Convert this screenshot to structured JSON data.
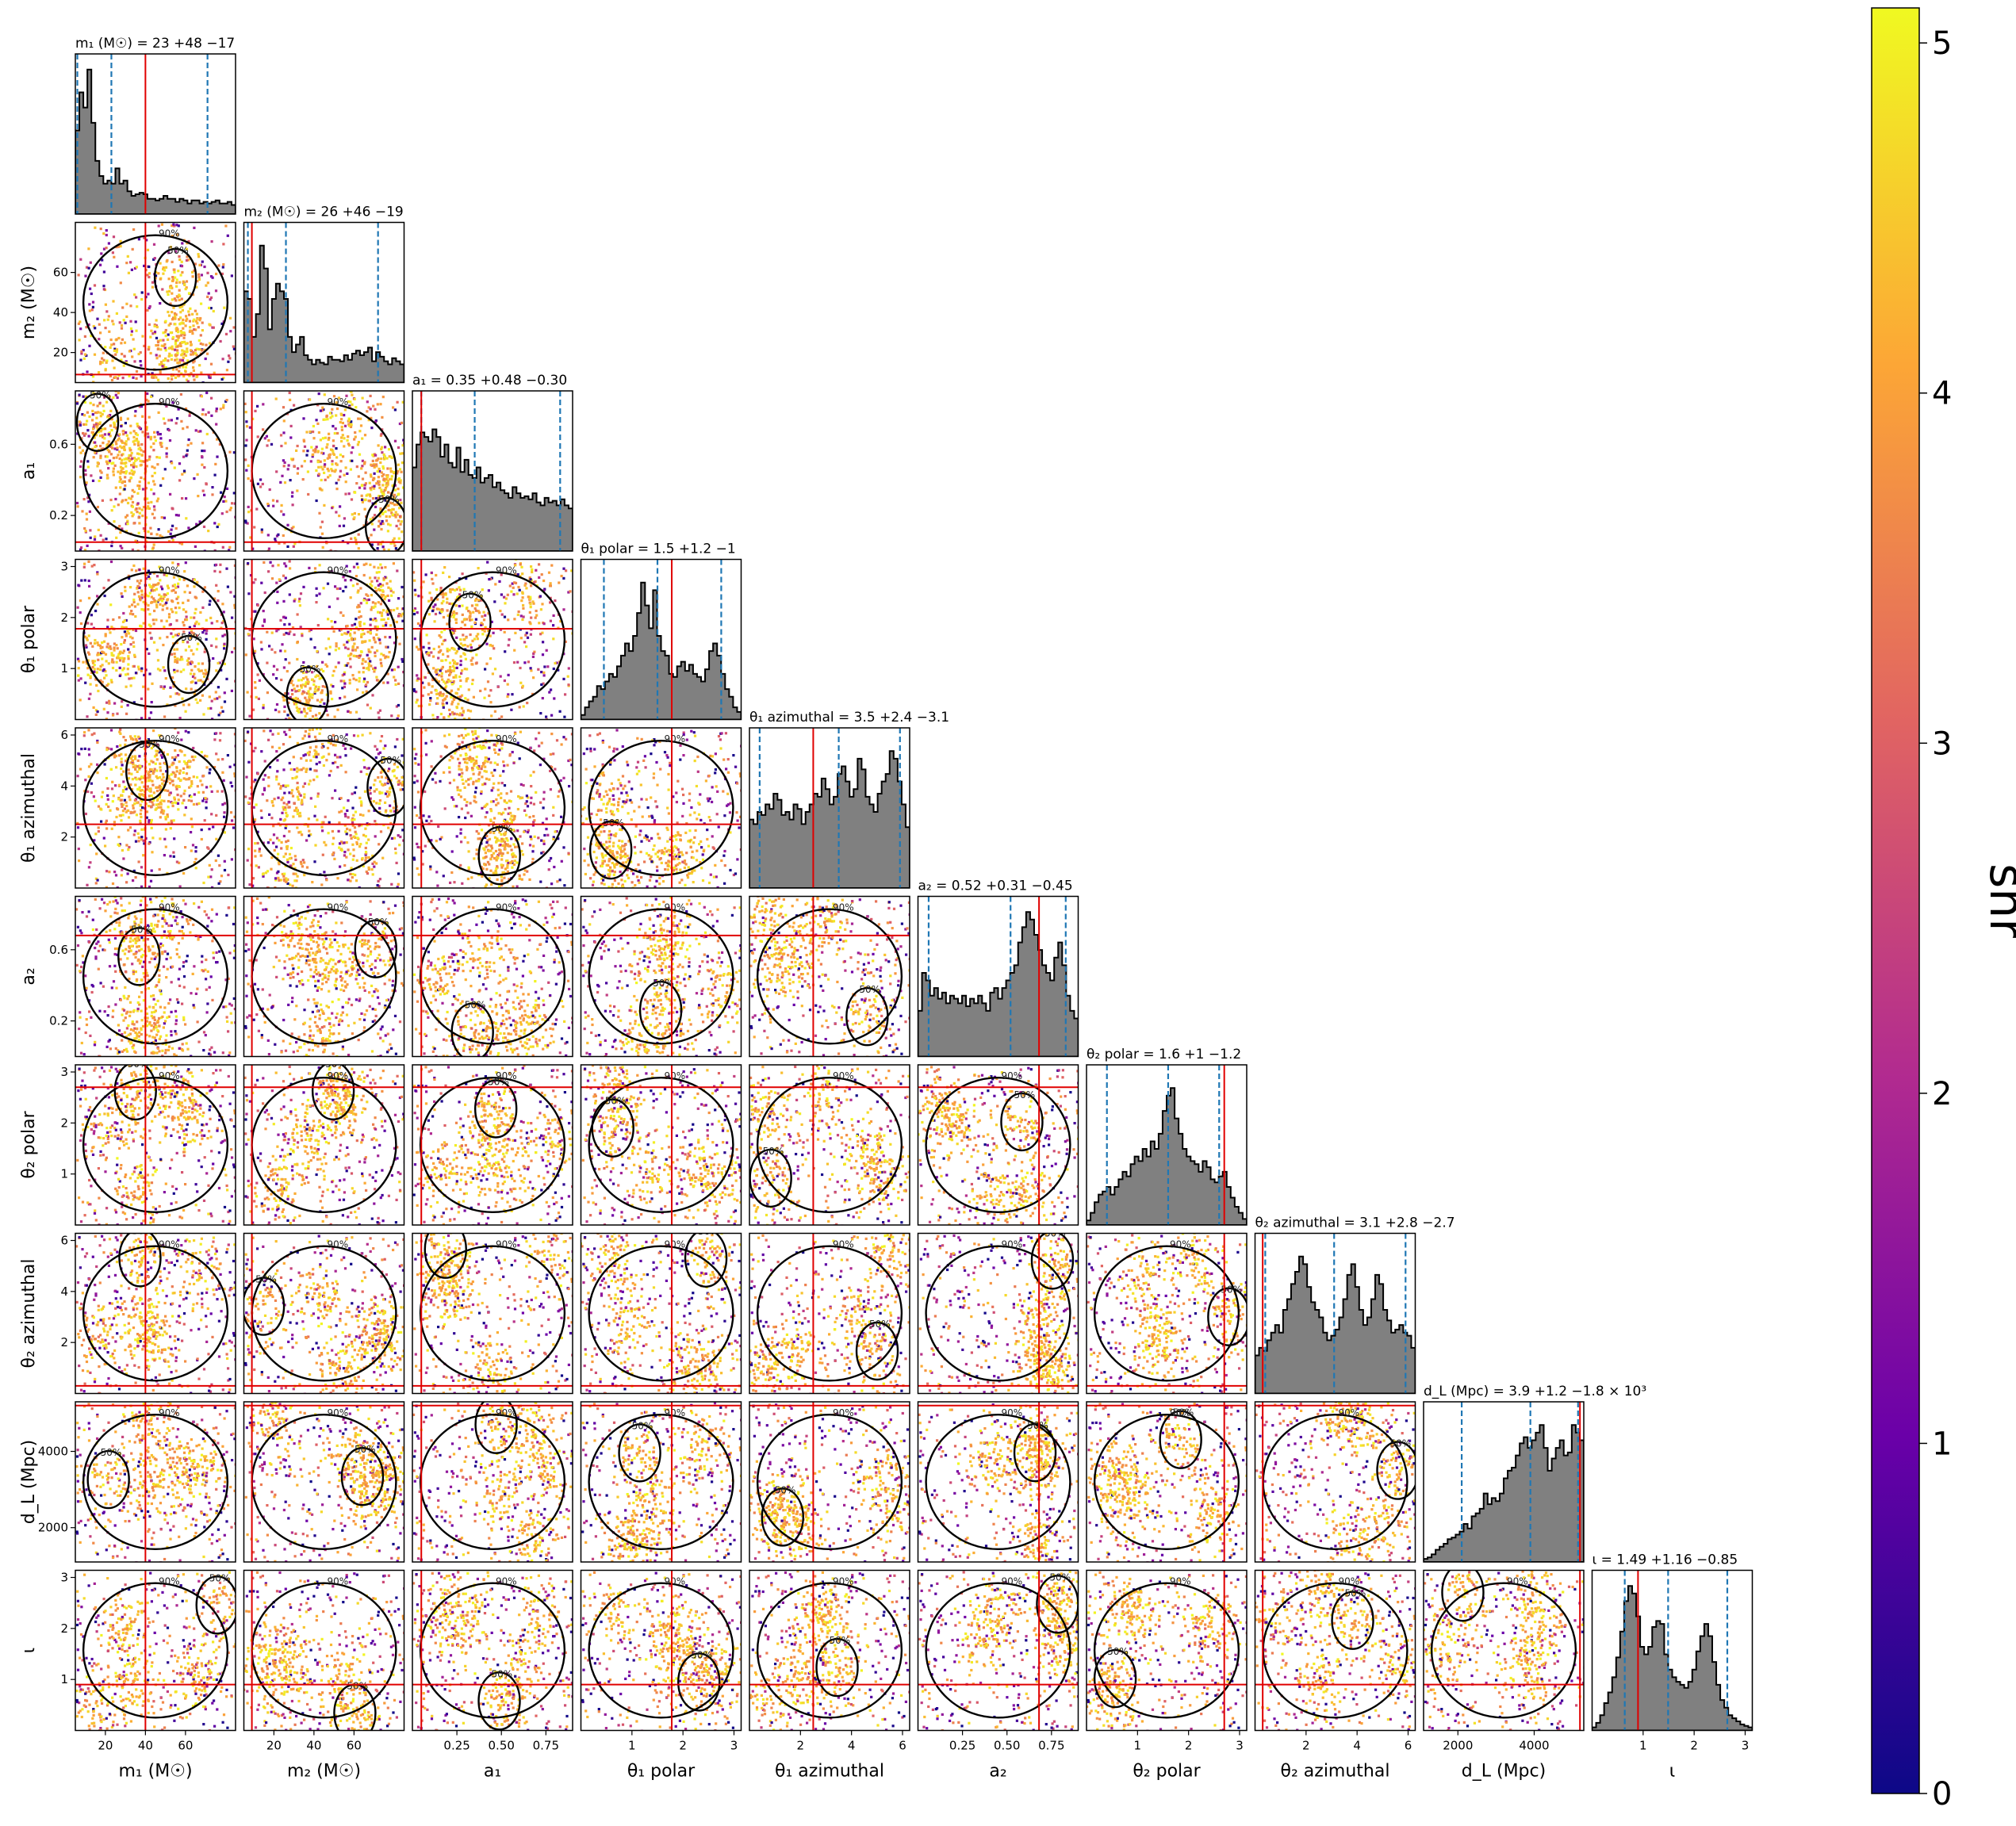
{
  "chart_data": {
    "type": "corner",
    "colors": {
      "hist_fill": "#808080",
      "quantile_line": "#1f77b4",
      "truth_line": "#e00000",
      "contour": "#000000"
    },
    "colormap": {
      "name": "plasma",
      "stops": [
        "#0d0887",
        "#6a00a8",
        "#b12a90",
        "#e16462",
        "#fca636",
        "#f0f921"
      ]
    },
    "colorbar": {
      "label": "snr",
      "range": [
        0,
        5.1
      ],
      "ticks": [
        "0",
        "1",
        "2",
        "3",
        "4",
        "5"
      ]
    },
    "contour_levels": [
      "50%",
      "90%"
    ],
    "parameters": [
      {
        "key": "m1",
        "label": "m₁ (M☉)",
        "title": "m₁ (M☉) = 23 +48 −17",
        "range": [
          5,
          85
        ],
        "ticks": [
          {
            "v": 20,
            "l": "20"
          },
          {
            "v": 40,
            "l": "40"
          },
          {
            "v": 60,
            "l": "60"
          }
        ],
        "quantiles": [
          6,
          23,
          71
        ],
        "truth": 40,
        "hist": [
          0.55,
          0.8,
          0.7,
          0.95,
          0.6,
          0.35,
          0.25,
          0.2,
          0.22,
          0.2,
          0.3,
          0.2,
          0.22,
          0.15,
          0.12,
          0.13,
          0.14,
          0.13,
          0.1,
          0.1,
          0.09,
          0.1,
          0.12,
          0.1,
          0.1,
          0.08,
          0.1,
          0.09,
          0.07,
          0.09,
          0.09,
          0.07,
          0.08,
          0.07,
          0.08,
          0.09,
          0.07,
          0.07,
          0.08,
          0.06
        ]
      },
      {
        "key": "m2",
        "label": "m₂ (M☉)",
        "title": "m₂ (M☉) = 26 +46 −19",
        "range": [
          5,
          85
        ],
        "ticks": [
          {
            "v": 20,
            "l": "20"
          },
          {
            "v": 40,
            "l": "40"
          },
          {
            "v": 60,
            "l": "60"
          }
        ],
        "quantiles": [
          7,
          26,
          72
        ],
        "truth": 9,
        "hist": [
          0.6,
          0.55,
          0.3,
          0.45,
          0.9,
          0.75,
          0.35,
          0.55,
          0.65,
          0.6,
          0.55,
          0.3,
          0.2,
          0.25,
          0.3,
          0.18,
          0.15,
          0.12,
          0.15,
          0.13,
          0.12,
          0.17,
          0.15,
          0.15,
          0.14,
          0.18,
          0.15,
          0.19,
          0.21,
          0.18,
          0.2,
          0.23,
          0.14,
          0.2,
          0.17,
          0.14,
          0.12,
          0.16,
          0.14,
          0.12
        ]
      },
      {
        "key": "a1",
        "label": "a₁",
        "title": "a₁ = 0.35 +0.48 −0.30",
        "range": [
          0,
          0.9
        ],
        "ticks": [
          {
            "v": 0.2,
            "l": "0.2"
          },
          {
            "v": 0.6,
            "l": "0.6"
          }
        ],
        "xticks": [
          {
            "v": 0.25,
            "l": "0.25"
          },
          {
            "v": 0.5,
            "l": "0.50"
          },
          {
            "v": 0.75,
            "l": "0.75"
          }
        ],
        "quantiles": [
          0.05,
          0.35,
          0.83
        ],
        "truth": 0.05,
        "hist": [
          0.55,
          0.7,
          0.78,
          0.75,
          0.72,
          0.8,
          0.75,
          0.62,
          0.7,
          0.58,
          0.55,
          0.68,
          0.52,
          0.6,
          0.5,
          0.48,
          0.55,
          0.45,
          0.48,
          0.5,
          0.42,
          0.45,
          0.4,
          0.38,
          0.35,
          0.42,
          0.38,
          0.35,
          0.36,
          0.34,
          0.38,
          0.32,
          0.3,
          0.35,
          0.32,
          0.33,
          0.3,
          0.34,
          0.3,
          0.28
        ]
      },
      {
        "key": "theta1_polar",
        "label": "θ₁ polar",
        "title": "θ₁ polar = 1.5 +1.2 −1",
        "range": [
          0,
          3.14
        ],
        "ticks": [
          {
            "v": 1,
            "l": "1"
          },
          {
            "v": 2,
            "l": "2"
          },
          {
            "v": 3,
            "l": "3"
          }
        ],
        "quantiles": [
          0.45,
          1.5,
          2.75
        ],
        "truth": 1.78,
        "hist": [
          0.03,
          0.08,
          0.12,
          0.15,
          0.22,
          0.2,
          0.25,
          0.3,
          0.28,
          0.35,
          0.42,
          0.5,
          0.45,
          0.55,
          0.7,
          0.9,
          0.75,
          0.6,
          0.85,
          0.55,
          0.45,
          0.42,
          0.3,
          0.28,
          0.35,
          0.38,
          0.32,
          0.36,
          0.3,
          0.28,
          0.25,
          0.33,
          0.45,
          0.5,
          0.42,
          0.3,
          0.2,
          0.15,
          0.08,
          0.05
        ]
      },
      {
        "key": "theta1_azimuthal",
        "label": "θ₁ azimuthal",
        "title": "θ₁ azimuthal = 3.5 +2.4 −3.1",
        "range": [
          0,
          6.28
        ],
        "ticks": [
          {
            "v": 2,
            "l": "2"
          },
          {
            "v": 4,
            "l": "4"
          },
          {
            "v": 6,
            "l": "6"
          }
        ],
        "quantiles": [
          0.4,
          3.5,
          5.9
        ],
        "truth": 2.5,
        "hist": [
          0.45,
          0.42,
          0.5,
          0.48,
          0.55,
          0.52,
          0.62,
          0.58,
          0.48,
          0.5,
          0.45,
          0.55,
          0.52,
          0.42,
          0.5,
          0.55,
          0.62,
          0.6,
          0.72,
          0.65,
          0.55,
          0.6,
          0.75,
          0.8,
          0.7,
          0.6,
          0.65,
          0.85,
          0.78,
          0.6,
          0.55,
          0.5,
          0.62,
          0.7,
          0.75,
          0.9,
          0.85,
          0.7,
          0.55,
          0.4
        ]
      },
      {
        "key": "a2",
        "label": "a₂",
        "title": "a₂ = 0.52 +0.31 −0.45",
        "range": [
          0,
          0.9
        ],
        "ticks": [
          {
            "v": 0.2,
            "l": "0.2"
          },
          {
            "v": 0.6,
            "l": "0.6"
          }
        ],
        "xticks": [
          {
            "v": 0.25,
            "l": "0.25"
          },
          {
            "v": 0.5,
            "l": "0.50"
          },
          {
            "v": 0.75,
            "l": "0.75"
          }
        ],
        "quantiles": [
          0.06,
          0.52,
          0.83
        ],
        "truth": 0.68,
        "hist": [
          0.3,
          0.55,
          0.5,
          0.4,
          0.45,
          0.38,
          0.42,
          0.35,
          0.4,
          0.38,
          0.35,
          0.4,
          0.33,
          0.38,
          0.35,
          0.4,
          0.35,
          0.3,
          0.42,
          0.45,
          0.38,
          0.45,
          0.5,
          0.55,
          0.6,
          0.75,
          0.85,
          0.95,
          0.9,
          0.8,
          0.7,
          0.6,
          0.55,
          0.5,
          0.65,
          0.75,
          0.6,
          0.4,
          0.3,
          0.25
        ]
      },
      {
        "key": "theta2_polar",
        "label": "θ₂ polar",
        "title": "θ₂ polar = 1.6 +1 −1.2",
        "range": [
          0,
          3.14
        ],
        "ticks": [
          {
            "v": 1,
            "l": "1"
          },
          {
            "v": 2,
            "l": "2"
          },
          {
            "v": 3,
            "l": "3"
          }
        ],
        "quantiles": [
          0.4,
          1.6,
          2.6
        ],
        "truth": 2.7,
        "hist": [
          0.03,
          0.08,
          0.15,
          0.2,
          0.22,
          0.25,
          0.2,
          0.25,
          0.3,
          0.35,
          0.32,
          0.4,
          0.45,
          0.42,
          0.5,
          0.45,
          0.55,
          0.5,
          0.6,
          0.75,
          0.85,
          0.9,
          0.7,
          0.6,
          0.5,
          0.45,
          0.42,
          0.4,
          0.35,
          0.42,
          0.38,
          0.3,
          0.28,
          0.32,
          0.35,
          0.25,
          0.18,
          0.12,
          0.08,
          0.04
        ]
      },
      {
        "key": "theta2_azimuthal",
        "label": "θ₂ azimuthal",
        "title": "θ₂ azimuthal = 3.1 +2.8 −2.7",
        "range": [
          0,
          6.28
        ],
        "ticks": [
          {
            "v": 2,
            "l": "2"
          },
          {
            "v": 4,
            "l": "4"
          },
          {
            "v": 6,
            "l": "6"
          }
        ],
        "quantiles": [
          0.4,
          3.1,
          5.9
        ],
        "truth": 0.3,
        "hist": [
          0.25,
          0.3,
          0.28,
          0.35,
          0.4,
          0.45,
          0.4,
          0.55,
          0.62,
          0.72,
          0.8,
          0.9,
          0.85,
          0.7,
          0.6,
          0.55,
          0.5,
          0.4,
          0.35,
          0.38,
          0.42,
          0.5,
          0.62,
          0.78,
          0.85,
          0.7,
          0.55,
          0.45,
          0.5,
          0.62,
          0.78,
          0.72,
          0.55,
          0.48,
          0.4,
          0.42,
          0.45,
          0.4,
          0.38,
          0.3
        ]
      },
      {
        "key": "dL",
        "label": "d_L (Mpc)",
        "title": "d_L (Mpc) = 3.9 +1.2 −1.8 × 10³",
        "range": [
          1100,
          5300
        ],
        "ticks": [
          {
            "v": 2000,
            "l": "2000"
          },
          {
            "v": 4000,
            "l": "4000"
          }
        ],
        "quantiles": [
          2100,
          3900,
          5150
        ],
        "truth": 5200,
        "hist": [
          0.02,
          0.03,
          0.05,
          0.08,
          0.1,
          0.12,
          0.15,
          0.16,
          0.18,
          0.2,
          0.25,
          0.22,
          0.3,
          0.32,
          0.35,
          0.45,
          0.38,
          0.42,
          0.4,
          0.45,
          0.55,
          0.6,
          0.62,
          0.7,
          0.78,
          0.82,
          0.75,
          0.8,
          0.85,
          0.9,
          0.75,
          0.6,
          0.68,
          0.75,
          0.8,
          0.7,
          0.72,
          0.9,
          0.85,
          0.8
        ]
      },
      {
        "key": "iota",
        "label": "ι",
        "title": "ι = 1.49 +1.16 −0.85",
        "range": [
          0,
          3.14
        ],
        "ticks": [
          {
            "v": 1,
            "l": "1"
          },
          {
            "v": 2,
            "l": "2"
          },
          {
            "v": 3,
            "l": "3"
          }
        ],
        "quantiles": [
          0.64,
          1.49,
          2.65
        ],
        "truth": 0.9,
        "hist": [
          0.02,
          0.05,
          0.1,
          0.18,
          0.25,
          0.35,
          0.48,
          0.65,
          0.85,
          0.95,
          0.9,
          0.75,
          0.55,
          0.5,
          0.55,
          0.68,
          0.72,
          0.7,
          0.5,
          0.4,
          0.35,
          0.32,
          0.3,
          0.28,
          0.32,
          0.4,
          0.52,
          0.62,
          0.7,
          0.62,
          0.45,
          0.3,
          0.2,
          0.15,
          0.1,
          0.08,
          0.06,
          0.04,
          0.03,
          0.02
        ]
      }
    ]
  }
}
